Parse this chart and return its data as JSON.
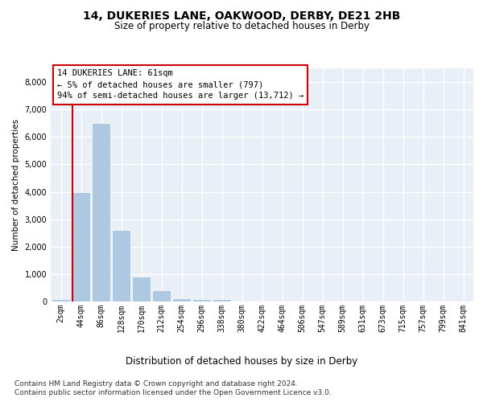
{
  "title_line1": "14, DUKERIES LANE, OAKWOOD, DERBY, DE21 2HB",
  "title_line2": "Size of property relative to detached houses in Derby",
  "xlabel": "Distribution of detached houses by size in Derby",
  "ylabel": "Number of detached properties",
  "bar_color": "#adc8e0",
  "annotation_box_edgecolor": "#cc0000",
  "annotation_line1": "14 DUKERIES LANE: 61sqm",
  "annotation_line2": "← 5% of detached houses are smaller (797)",
  "annotation_line3": "94% of semi-detached houses are larger (13,712) →",
  "categories": [
    "2sqm",
    "44sqm",
    "86sqm",
    "128sqm",
    "170sqm",
    "212sqm",
    "254sqm",
    "296sqm",
    "338sqm",
    "380sqm",
    "422sqm",
    "464sqm",
    "506sqm",
    "547sqm",
    "589sqm",
    "631sqm",
    "673sqm",
    "715sqm",
    "757sqm",
    "799sqm",
    "841sqm"
  ],
  "values": [
    75,
    4000,
    6500,
    2600,
    900,
    400,
    130,
    100,
    80,
    0,
    0,
    0,
    0,
    0,
    0,
    0,
    0,
    0,
    0,
    0,
    0
  ],
  "ylim": [
    0,
    8500
  ],
  "yticks": [
    0,
    1000,
    2000,
    3000,
    4000,
    5000,
    6000,
    7000,
    8000
  ],
  "bg_color": "#ffffff",
  "plot_bg_color": "#e8eff7",
  "grid_color": "#ffffff",
  "title_fontsize": 10,
  "subtitle_fontsize": 8.5,
  "xlabel_fontsize": 8.5,
  "ylabel_fontsize": 7.5,
  "tick_fontsize": 7,
  "annotation_fontsize": 7.5,
  "footnote_fontsize": 6.5,
  "footnote1": "Contains HM Land Registry data © Crown copyright and database right 2024.",
  "footnote2": "Contains public sector information licensed under the Open Government Licence v3.0.",
  "vline_color": "#cc0000",
  "vline_x": 0.575
}
